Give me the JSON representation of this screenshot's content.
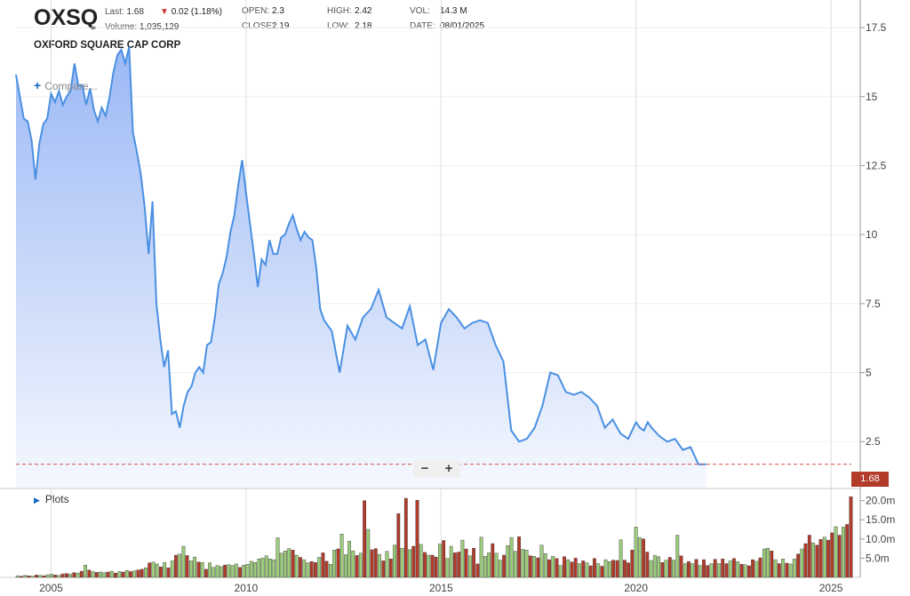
{
  "header": {
    "symbol": "OXSQ",
    "company": "OXFORD SQUARE CAP CORP",
    "last_label": "Last:",
    "last_value": "1.68",
    "change": "0.02 (1.18%)",
    "volume_label": "Volume:",
    "volume_value": "1,035,129",
    "open_label": "OPEN:",
    "open_value": "2.3",
    "close_label": "CLOSE:",
    "close_value": "2.19",
    "high_label": "HIGH:",
    "high_value": "2.42",
    "low_label": "LOW:",
    "low_value": "2.18",
    "vol_label": "VOL:",
    "vol_value": "14.3 M",
    "date_label": "DATE:",
    "date_value": "08/01/2025"
  },
  "controls": {
    "compare_label": "Compare...",
    "plots_label": "Plots",
    "zoom_out": "−",
    "zoom_in": "+"
  },
  "colors": {
    "line": "#4a90e2",
    "fill_top": "#9bb8f5",
    "fill_bottom": "#f5f8fe",
    "vol_up": "#9ccc7a",
    "vol_down": "#b23b2a",
    "last_line": "#d9534f"
  },
  "chart_data": {
    "type": "area",
    "price": {
      "x": [
        2004.1,
        2004.2,
        2004.3,
        2004.4,
        2004.5,
        2004.6,
        2004.7,
        2004.8,
        2004.9,
        2005.0,
        2005.1,
        2005.2,
        2005.3,
        2005.4,
        2005.5,
        2005.6,
        2005.7,
        2005.8,
        2005.9,
        2006.0,
        2006.1,
        2006.2,
        2006.3,
        2006.4,
        2006.5,
        2006.6,
        2006.7,
        2006.8,
        2006.9,
        2007.0,
        2007.1,
        2007.2,
        2007.3,
        2007.4,
        2007.5,
        2007.6,
        2007.7,
        2007.8,
        2007.9,
        2008.0,
        2008.1,
        2008.2,
        2008.3,
        2008.4,
        2008.5,
        2008.6,
        2008.7,
        2008.8,
        2008.9,
        2009.0,
        2009.1,
        2009.2,
        2009.3,
        2009.4,
        2009.5,
        2009.6,
        2009.7,
        2009.8,
        2009.9,
        2010.0,
        2010.1,
        2010.2,
        2010.3,
        2010.4,
        2010.5,
        2010.6,
        2010.7,
        2010.8,
        2010.9,
        2011.0,
        2011.1,
        2011.2,
        2011.3,
        2011.4,
        2011.5,
        2011.6,
        2011.7,
        2011.8,
        2011.9,
        2012.0,
        2012.2,
        2012.4,
        2012.6,
        2012.8,
        2013.0,
        2013.2,
        2013.4,
        2013.6,
        2013.8,
        2014.0,
        2014.2,
        2014.4,
        2014.6,
        2014.8,
        2015.0,
        2015.2,
        2015.4,
        2015.6,
        2015.8,
        2016.0,
        2016.2,
        2016.4,
        2016.6,
        2016.8,
        2017.0,
        2017.2,
        2017.4,
        2017.6,
        2017.8,
        2018.0,
        2018.2,
        2018.4,
        2018.6,
        2018.8,
        2019.0,
        2019.2,
        2019.4,
        2019.6,
        2019.8,
        2020.0,
        2020.1,
        2020.2,
        2020.3,
        2020.4,
        2020.6,
        2020.8,
        2021.0,
        2021.2,
        2021.4,
        2021.6,
        2021.8,
        2022.0,
        2022.2,
        2022.4,
        2022.6,
        2022.8,
        2023.0,
        2023.2,
        2023.4,
        2023.6,
        2023.8,
        2024.0,
        2024.2,
        2024.4,
        2024.6,
        2024.8,
        2025.0,
        2025.2,
        2025.4,
        2025.55,
        2025.65
      ],
      "y": [
        15.8,
        15.0,
        14.2,
        14.1,
        13.4,
        12.0,
        13.3,
        14.0,
        14.2,
        15.1,
        14.8,
        15.2,
        14.7,
        15.0,
        15.2,
        16.2,
        15.4,
        15.4,
        14.7,
        15.3,
        14.5,
        14.1,
        14.6,
        14.3,
        15.0,
        15.9,
        16.5,
        16.7,
        16.2,
        16.8,
        13.7,
        13.0,
        12.2,
        11.0,
        9.3,
        11.2,
        7.5,
        6.2,
        5.2,
        5.8,
        3.5,
        3.6,
        3.0,
        3.8,
        4.3,
        4.5,
        5.0,
        5.2,
        5.0,
        6.0,
        6.1,
        7.0,
        8.2,
        8.6,
        9.2,
        10.1,
        10.7,
        11.8,
        12.7,
        11.5,
        10.4,
        9.3,
        8.1,
        9.1,
        8.9,
        9.8,
        9.3,
        9.3,
        9.9,
        10.0,
        10.4,
        10.7,
        10.2,
        9.8,
        10.1,
        9.9,
        9.8,
        8.8,
        7.3,
        6.9,
        6.5,
        5.0,
        6.7,
        6.2,
        7.0,
        7.3,
        8.0,
        7.0,
        6.8,
        6.6,
        7.4,
        6.0,
        6.2,
        5.1,
        6.8,
        7.3,
        7.0,
        6.6,
        6.8,
        6.9,
        6.8,
        6.0,
        5.4,
        2.9,
        2.5,
        2.6,
        3.0,
        3.8,
        5.0,
        4.9,
        4.3,
        4.2,
        4.3,
        4.1,
        3.8,
        3.0,
        3.3,
        2.8,
        2.6,
        3.2,
        3.0,
        2.9,
        3.2,
        3.0,
        2.7,
        2.5,
        2.6,
        2.2,
        2.3,
        1.68,
        1.68,
        1.68,
        1.68,
        1.68,
        1.68,
        1.68,
        1.68,
        1.68,
        1.68,
        1.68,
        1.68,
        1.68,
        1.68,
        1.68,
        1.68,
        1.68,
        1.68,
        1.68,
        1.68,
        1.68,
        1.68
      ],
      "last": 1.68
    },
    "price_axis": {
      "ticks": [
        "17.5",
        "15",
        "12.5",
        "10",
        "7.5",
        "5",
        "2.5"
      ],
      "tick_values": [
        17.5,
        15,
        12.5,
        10,
        7.5,
        5,
        2.5
      ],
      "ylim": [
        0.8,
        18.5
      ]
    },
    "x_axis": {
      "ticks": [
        "2005",
        "2010",
        "2015",
        "2020",
        "2025"
      ],
      "tick_values": [
        2005,
        2010,
        2015,
        2020,
        2025
      ],
      "xlim": [
        2004.1,
        2025.75
      ]
    },
    "volume": {
      "values": [
        0.4,
        0.3,
        0.5,
        0.4,
        0.3,
        0.6,
        0.5,
        0.4,
        0.7,
        0.8,
        0.6,
        0.5,
        0.9,
        1.0,
        0.8,
        1.2,
        1.1,
        1.6,
        3.2,
        1.9,
        1.5,
        1.3,
        1.4,
        1.2,
        1.4,
        1.6,
        1.1,
        1.5,
        1.4,
        1.8,
        1.5,
        1.7,
        1.9,
        2.1,
        2.5,
        3.8,
        4.0,
        3.5,
        2.7,
        3.9,
        2.5,
        4.3,
        5.8,
        6.1,
        8.1,
        5.7,
        4.3,
        5.3,
        4.0,
        3.9,
        2.1,
        3.8,
        2.6,
        3.1,
        2.8,
        3.2,
        3.3,
        3.1,
        3.5,
        2.6,
        3.2,
        3.4,
        4.2,
        3.9,
        4.8,
        5.0,
        5.6,
        4.8,
        4.6,
        10.3,
        6.3,
        6.9,
        7.5,
        7.1,
        5.8,
        5.2,
        4.6,
        3.8,
        4.1,
        3.9,
        5.2,
        6.4,
        4.2,
        3.4,
        7.1,
        7.4,
        11.3,
        5.9,
        9.4,
        6.9,
        5.7,
        6.3,
        20.0,
        12.5,
        7.2,
        7.5,
        6.0,
        4.3,
        6.8,
        4.8,
        8.4,
        16.6,
        7.6,
        20.6,
        7.2,
        8.1,
        20.1,
        8.6,
        6.5,
        5.8,
        5.8,
        5.3,
        8.7,
        9.6,
        4.9,
        8.1,
        6.4,
        6.6,
        9.7,
        7.4,
        5.6,
        7.6,
        3.5,
        10.5,
        5.5,
        6.4,
        8.8,
        6.3,
        4.5,
        5.8,
        8.3,
        10.4,
        6.8,
        10.6,
        7.3,
        7.1,
        5.6,
        5.5,
        5.1,
        8.4,
        6.2,
        4.6,
        5.5,
        4.9,
        3.1,
        5.4,
        4.6,
        4.0,
        5.0,
        3.6,
        4.3,
        3.8,
        3.0,
        4.9,
        3.6,
        2.9,
        4.6,
        4.1,
        4.5,
        4.4,
        9.8,
        4.5,
        3.8,
        7.1,
        13.1,
        10.4,
        10.0,
        6.6,
        4.4,
        5.7,
        5.4,
        3.9,
        4.5,
        5.2,
        4.5,
        11.0,
        5.6,
        3.6,
        4.1,
        3.6,
        4.7,
        3.1,
        4.6,
        3.1,
        3.6,
        4.7,
        3.6,
        4.8,
        3.6,
        4.3,
        4.9,
        4.1,
        3.4,
        3.3,
        3.0,
        4.6,
        4.2,
        5.1,
        7.4,
        7.6,
        6.9,
        4.6,
        3.6,
        4.8,
        3.7,
        3.5,
        4.8,
        6.1,
        7.4,
        8.8,
        11.0,
        9.0,
        8.4,
        9.9,
        10.5,
        9.7,
        11.6,
        13.2,
        11.0,
        13.1,
        13.8,
        21.0
      ],
      "up": [
        1,
        0,
        1,
        0,
        1,
        0,
        1,
        0,
        1,
        1,
        0,
        1,
        0,
        0,
        1,
        0,
        1,
        0,
        1,
        0,
        1,
        0,
        1,
        1,
        0,
        1,
        0,
        1,
        0,
        1,
        0,
        1,
        0,
        0,
        1,
        0,
        1,
        1,
        0,
        1,
        0,
        1,
        0,
        1,
        1,
        0,
        1,
        1,
        0,
        1,
        0,
        1,
        1,
        1,
        1,
        0,
        1,
        1,
        1,
        0,
        1,
        1,
        1,
        1,
        1,
        1,
        1,
        1,
        1,
        1,
        1,
        1,
        1,
        0,
        1,
        0,
        1,
        1,
        0,
        0,
        1,
        0,
        0,
        1,
        1,
        0,
        1,
        1,
        1,
        1,
        0,
        1,
        0,
        1,
        0,
        0,
        1,
        0,
        1,
        0,
        1,
        0,
        1,
        0,
        1,
        0,
        0,
        1,
        0,
        1,
        0,
        0,
        1,
        0,
        1,
        1,
        0,
        0,
        1,
        0,
        1,
        0,
        0,
        1,
        1,
        1,
        0,
        1,
        1,
        0,
        1,
        1,
        1,
        0,
        1,
        1,
        0,
        1,
        0,
        1,
        1,
        0,
        1,
        0,
        1,
        0,
        1,
        0,
        0,
        1,
        0,
        1,
        0,
        0,
        1,
        0,
        1,
        1,
        0,
        0,
        1,
        0,
        0,
        0,
        1,
        1,
        0,
        0,
        1,
        1,
        1,
        0,
        1,
        0,
        1,
        1,
        0,
        1,
        0,
        1,
        0,
        1,
        0,
        0,
        1,
        0,
        1,
        0,
        0,
        1,
        0,
        1,
        0,
        1,
        0,
        0,
        1,
        0,
        1,
        1,
        0,
        1,
        0,
        1,
        0,
        1,
        1,
        0,
        1,
        0,
        0,
        1,
        0,
        0,
        1,
        0,
        0,
        1,
        0,
        1,
        0,
        0
      ],
      "axis_ticks": [
        "20.0m",
        "15.0m",
        "10.0m",
        "5.0m"
      ],
      "axis_tick_values": [
        20,
        15,
        10,
        5
      ],
      "ylim": [
        0,
        22
      ]
    }
  }
}
